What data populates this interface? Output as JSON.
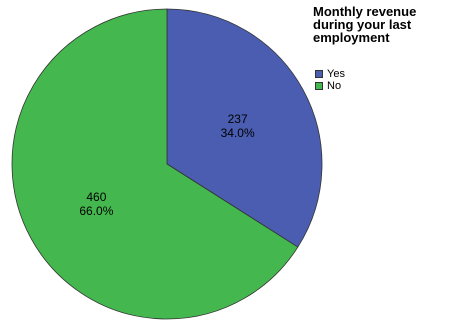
{
  "chart_data": {
    "type": "pie",
    "legend_title": [
      "Monthly revenue",
      "during your last",
      "employment"
    ],
    "legend_position": "top-right",
    "slices": [
      {
        "label": "Yes",
        "value": 237,
        "percent": "34.0%",
        "color": "#4a5db0"
      },
      {
        "label": "No",
        "value": 460,
        "percent": "66.0%",
        "color": "#44b74e"
      }
    ],
    "start_angle_deg": 0,
    "direction": "clockwise"
  }
}
